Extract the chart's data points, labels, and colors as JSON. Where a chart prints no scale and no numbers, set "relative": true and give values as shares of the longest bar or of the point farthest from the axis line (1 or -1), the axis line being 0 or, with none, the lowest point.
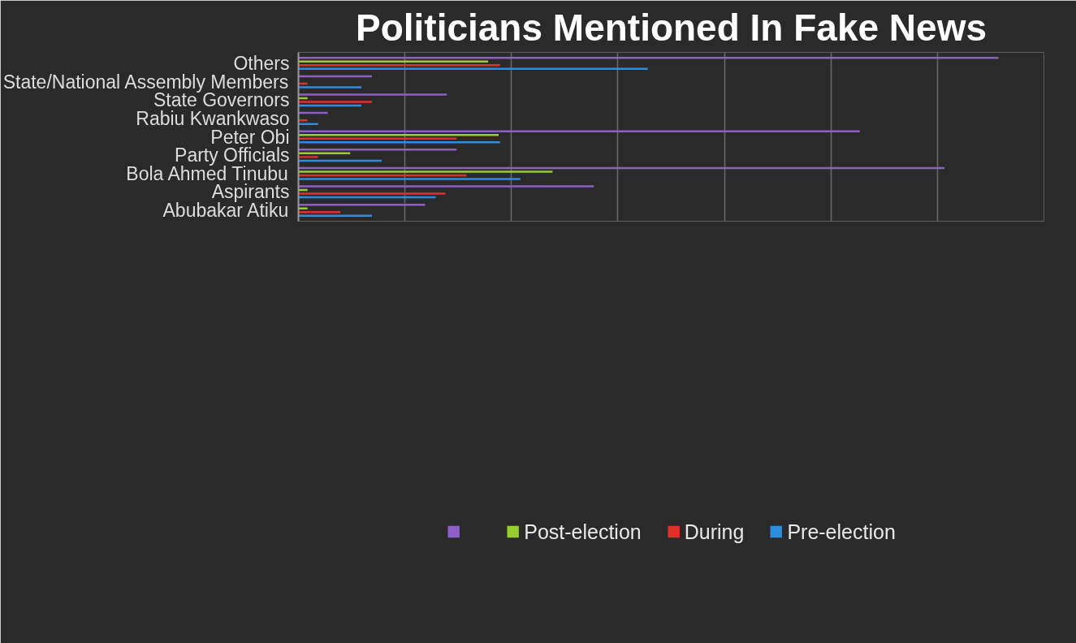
{
  "chart_data": {
    "type": "bar",
    "orientation": "horizontal",
    "relative": true,
    "title": "Politicians Mentioned In Fake News",
    "categories": [
      "Others",
      "State/National Assembly Members",
      "State Governors",
      "Rabiu Kwankwaso",
      "Peter Obi",
      "Party Officials",
      "Bola Ahmed Tinubu",
      "Aspirants",
      "Abubakar Atiku"
    ],
    "series": [
      {
        "color": "#8e5fc4",
        "values": [
          1.0,
          0.105,
          0.212,
          0.042,
          0.802,
          0.226,
          0.923,
          0.422,
          0.181
        ]
      },
      {
        "name": "Post-election",
        "color": "#9acd32",
        "values": [
          0.271,
          0,
          0.013,
          0,
          0.286,
          0.074,
          0.363,
          0.013,
          0.013
        ]
      },
      {
        "name": "During",
        "color": "#e0302a",
        "values": [
          0.288,
          0.013,
          0.105,
          0.013,
          0.226,
          0.028,
          0.24,
          0.21,
          0.06
        ]
      },
      {
        "name": "Pre-election",
        "color": "#2f8de0",
        "values": [
          0.499,
          0.09,
          0.09,
          0.028,
          0.288,
          0.119,
          0.317,
          0.196,
          0.105
        ]
      }
    ],
    "grid": "x",
    "legend": "bottom"
  }
}
